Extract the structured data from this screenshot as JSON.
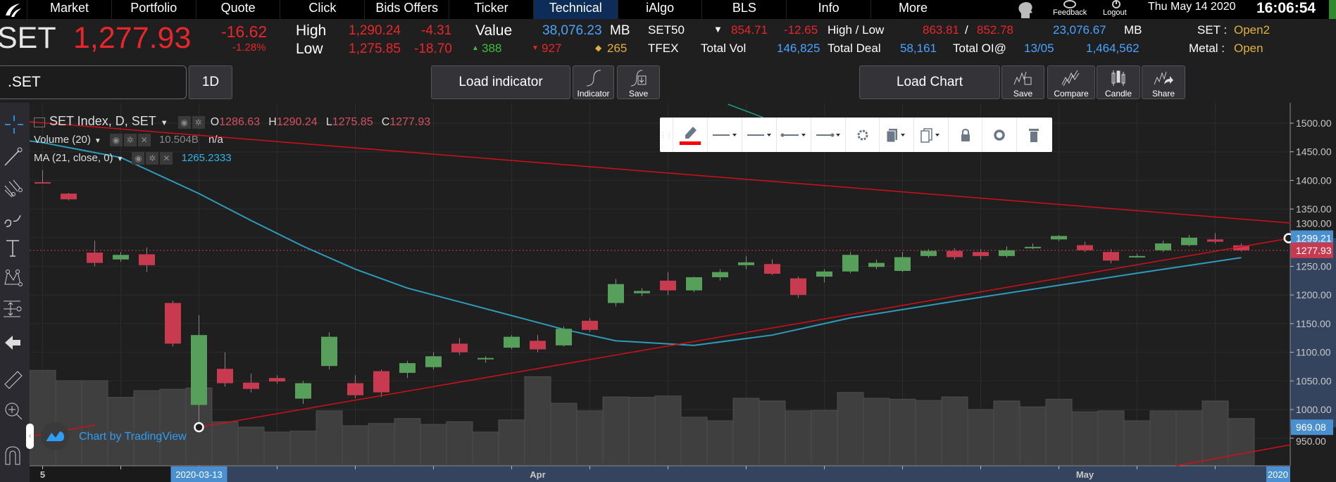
{
  "nav": {
    "items": [
      "Market",
      "Portfolio",
      "Quote",
      "Click",
      "Bids Offers",
      "Ticker",
      "Technical",
      "iAlgo",
      "BLS",
      "Info",
      "More"
    ],
    "active": "Technical",
    "feedback": "Feedback",
    "logout": "Logout",
    "date": "Thu May 14 2020",
    "time": "16:06:54"
  },
  "quote": {
    "symbol": "SET",
    "last": "1,277.93",
    "change": "-16.62",
    "pct": "-1.28%",
    "high_label": "High",
    "high": "1,290.24",
    "high_chg": "-4.31",
    "low_label": "Low",
    "low": "1,275.85",
    "low_chg": "-18.70",
    "value_label": "Value",
    "value": "38,076.23",
    "value_unit": "MB",
    "adv": "388",
    "dec": "927",
    "unch": "265",
    "set50": "SET50",
    "set50_last": "854.71",
    "set50_chg": "-12.65",
    "hl_label": "High / Low",
    "set50_high": "863.81",
    "sep": "/",
    "set50_low": "852.78",
    "set50_value": "23,076.67",
    "set50_unit": "MB",
    "set_label": "SET :",
    "set_status": "Open2",
    "tfex": "TFEX",
    "total_vol_label": "Total Vol",
    "total_vol": "146,825",
    "total_deal_label": "Total Deal",
    "total_deal": "58,161",
    "total_oi_label": "Total OI@",
    "oi_date": "13/05",
    "total_oi": "1,464,562",
    "metal_label": "Metal :",
    "metal_status": "Open"
  },
  "toolbar": {
    "symbol": ".SET",
    "interval": "1D",
    "load_indicator": "Load indicator",
    "indicator": "Indicator",
    "save": "Save",
    "load_chart": "Load Chart",
    "chart_save": "Save",
    "compare": "Compare",
    "candle": "Candle",
    "share": "Share"
  },
  "legend": {
    "title": "SET Index, D, SET",
    "o_label": "O",
    "o": "1286.63",
    "h_label": "H",
    "h": "1290.24",
    "l_label": "L",
    "l": "1275.85",
    "c_label": "C",
    "c": "1277.93",
    "volume_label": "Volume (20)",
    "volume_value": "10.504B",
    "volume_na": "n/a",
    "ma_label": "MA (21, close, 0)",
    "ma_value": "1265.2333"
  },
  "watermark": "Chart by TradingView",
  "colors": {
    "up": "#56a05c",
    "down": "#c73a4f",
    "ma": "#2e9bbb",
    "trend": "#d0101a",
    "accent": "#4a8fd0"
  },
  "chart_data": {
    "type": "candlestick",
    "title": "SET Index, D, SET",
    "candles": [
      [
        1397,
        1418,
        1394,
        1395
      ],
      [
        1377,
        1378,
        1365,
        1367
      ],
      [
        1274,
        1295,
        1250,
        1256
      ],
      [
        1262,
        1275,
        1258,
        1270
      ],
      [
        1271,
        1283,
        1240,
        1252
      ],
      [
        1186,
        1190,
        1110,
        1115
      ],
      [
        1008,
        1165,
        969.08,
        1130
      ],
      [
        1071,
        1100,
        1040,
        1046
      ],
      [
        1047,
        1063,
        1030,
        1036
      ],
      [
        1055,
        1060,
        1045,
        1049
      ],
      [
        1019,
        1050,
        1010,
        1046
      ],
      [
        1076,
        1135,
        1070,
        1127
      ],
      [
        1046,
        1060,
        1020,
        1025
      ],
      [
        1067,
        1070,
        1022,
        1030
      ],
      [
        1064,
        1085,
        1055,
        1081
      ],
      [
        1074,
        1100,
        1070,
        1093
      ],
      [
        1115,
        1125,
        1095,
        1100
      ],
      [
        1088,
        1093,
        1082,
        1090
      ],
      [
        1108,
        1130,
        1105,
        1127
      ],
      [
        1120,
        1130,
        1100,
        1105
      ],
      [
        1112,
        1145,
        1110,
        1141
      ],
      [
        1155,
        1160,
        1135,
        1139
      ],
      [
        1186,
        1228,
        1180,
        1219
      ],
      [
        1203,
        1212,
        1198,
        1207
      ],
      [
        1225,
        1240,
        1200,
        1208
      ],
      [
        1208,
        1232,
        1205,
        1231
      ],
      [
        1231,
        1245,
        1225,
        1240
      ],
      [
        1252,
        1268,
        1245,
        1257
      ],
      [
        1254,
        1262,
        1235,
        1237
      ],
      [
        1229,
        1232,
        1195,
        1200
      ],
      [
        1232,
        1245,
        1222,
        1241
      ],
      [
        1241,
        1275,
        1238,
        1270
      ],
      [
        1249,
        1262,
        1245,
        1256
      ],
      [
        1242,
        1275,
        1240,
        1266
      ],
      [
        1268,
        1280,
        1265,
        1277
      ],
      [
        1277,
        1282,
        1262,
        1266
      ],
      [
        1275,
        1280,
        1262,
        1268
      ],
      [
        1268,
        1285,
        1265,
        1278
      ],
      [
        1283,
        1290,
        1280,
        1284
      ],
      [
        1297,
        1305,
        1294,
        1303
      ],
      [
        1287,
        1293,
        1275,
        1278
      ],
      [
        1275,
        1280,
        1255,
        1260
      ],
      [
        1268,
        1272,
        1265,
        1268
      ],
      [
        1278,
        1295,
        1275,
        1290
      ],
      [
        1287,
        1305,
        1285,
        1300
      ],
      [
        1297,
        1308,
        1290,
        1293
      ],
      [
        1286.63,
        1290.24,
        1275.85,
        1277.93
      ]
    ],
    "volume_b": [
      21.2,
      18.9,
      18.9,
      15.2,
      16.7,
      17.0,
      17.3,
      9.8,
      8.6,
      7.5,
      7.7,
      12.2,
      8.9,
      9.4,
      10.5,
      9.2,
      9.8,
      7.5,
      10.2,
      19.8,
      13.9,
      12.2,
      15.3,
      15.2,
      15.5,
      10.8,
      10.0,
      15.0,
      14.4,
      12.2,
      12.3,
      16.3,
      15.0,
      14.8,
      14.5,
      15.3,
      12.5,
      14.4,
      13.1,
      14.8,
      12.0,
      12.2,
      10.0,
      12.2,
      12.2,
      14.4,
      10.5
    ],
    "ma": [
      [
        -0.7,
        1470
      ],
      [
        0,
        1466
      ],
      [
        3,
        1440
      ],
      [
        6,
        1377
      ],
      [
        8,
        1330
      ],
      [
        10,
        1285
      ],
      [
        12,
        1245
      ],
      [
        14,
        1212
      ],
      [
        16,
        1188
      ],
      [
        18,
        1164
      ],
      [
        20,
        1140
      ],
      [
        22,
        1120
      ],
      [
        25,
        1112
      ],
      [
        28,
        1130
      ],
      [
        31,
        1160
      ],
      [
        35,
        1189
      ],
      [
        39,
        1217
      ],
      [
        42,
        1238
      ],
      [
        46,
        1265.23
      ]
    ],
    "drawings": [
      {
        "name": "upper-trend-line",
        "from": [
          -0.5,
          1502.5
        ],
        "to": [
          47.9,
          1325.6
        ],
        "color": "#d0101a"
      },
      {
        "name": "lower-trend-line",
        "from": [
          6,
          969.08
        ],
        "to": [
          47.9,
          1299.21
        ],
        "color": "#d0101a"
      },
      {
        "name": "channel-line",
        "from": [
          43.5,
          901.7
        ],
        "to": [
          47.9,
          938.6
        ],
        "color": "#d0101a"
      },
      {
        "name": "left-segment",
        "from": [
          -0.42,
          953.3
        ],
        "to": [
          2.01,
          972.9
        ],
        "color": "#d0101a"
      },
      {
        "name": "teal-line",
        "from": [
          26.3,
          1533
        ],
        "to": [
          27.66,
          1509.8
        ],
        "color": "#1a9e7e"
      }
    ],
    "price_ticks": [
      "1500.00",
      "1450.00",
      "1400.00",
      "1350.00",
      "1300.00",
      "1250.00",
      "1200.00",
      "1150.00",
      "1100.00",
      "1050.00",
      "1000.00",
      "950.00"
    ],
    "price_values": [
      1500,
      1450,
      1400,
      1350,
      1300,
      1250,
      1200,
      1150,
      1100,
      1050,
      1000,
      950
    ],
    "price_markers": [
      {
        "label": "1299.21",
        "value": 1299.21,
        "color": "#4a8fd0"
      },
      {
        "label": "1277.93",
        "value": 1277.93,
        "color": "#c73a4f"
      },
      {
        "label": "969.08",
        "value": 969.08,
        "color": "#4a8fd0"
      }
    ],
    "last_price": 1277.93,
    "time_labels": [
      {
        "label": "5",
        "index": 0
      },
      {
        "label": "2020-03-13",
        "index": 6,
        "highlight": true
      },
      {
        "label": "Apr",
        "index": 19
      },
      {
        "label": "May",
        "index": 40
      }
    ],
    "time_end_label": "2020",
    "selection_price_range": [
      969.08,
      1299.21
    ]
  }
}
